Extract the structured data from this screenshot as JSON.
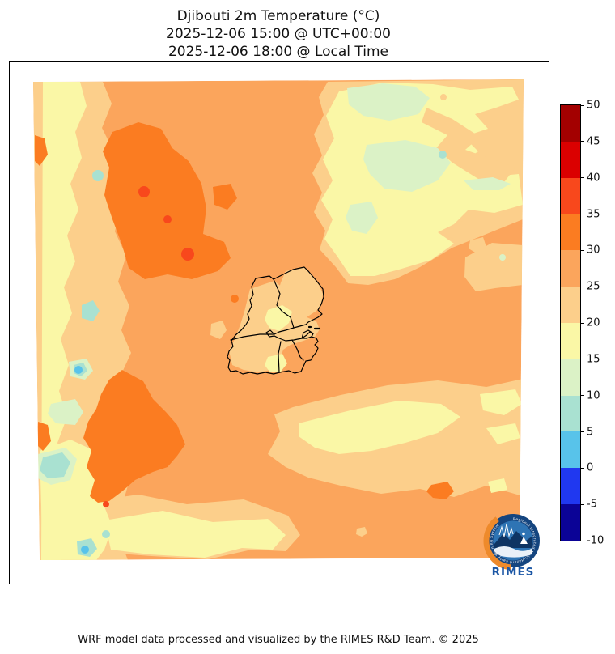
{
  "title": {
    "line1": "Djibouti 2m Temperature (°C)",
    "line2": "2025-12-06 15:00 @ UTC+00:00",
    "line3": "2025-12-06 18:00 @ Local Time"
  },
  "footer": {
    "credit": "WRF model data processed and visualized by the RIMES R&D Team. © 2025"
  },
  "logo": {
    "text": "RIMES",
    "ring_text": "Regional Integrated Multi-Hazard Early Warning System"
  },
  "chart_data": {
    "type": "heatmap",
    "title": "Djibouti 2m Temperature (°C)",
    "variable": "2m Temperature",
    "units": "°C",
    "valid_time_utc": "2025-12-06 15:00 @ UTC+00:00",
    "valid_time_local": "2025-12-06 18:00 @ Local Time",
    "colorbar": {
      "orientation": "vertical",
      "tick_labels_top_to_bottom": [
        "50",
        "45",
        "40",
        "35",
        "30",
        "25",
        "20",
        "15",
        "10",
        "5",
        "0",
        "-5",
        "-10"
      ],
      "levels_low_to_high": [
        -10,
        -5,
        0,
        5,
        10,
        15,
        20,
        25,
        30,
        35,
        40,
        45,
        50
      ],
      "colors_low_to_high": [
        "#0B0396",
        "#2038F0",
        "#58C3EA",
        "#A9E1D1",
        "#DBF2C6",
        "#FAF7A6",
        "#FCCF8B",
        "#FBA55C",
        "#FB7C21",
        "#F8481C",
        "#DB0000",
        "#A30000"
      ]
    },
    "palette": {
      "t35_40": "#F8481C",
      "t30_35": "#FB7C21",
      "t25_30": "#FBA55C",
      "t20_25": "#FCCF8B",
      "t15_20": "#FAF7A6",
      "t10_15": "#DBF2C6",
      "t5_10": "#A9E1D1",
      "t0_5": "#58C3EA"
    },
    "field_summary": {
      "dominant_band_c": "25-30",
      "warm_patches_c": "30-40 in two interior lowland blobs (north-center and south-center-west)",
      "cool_patches_c": "0-15 along the western escarpment band and the north-eastern highlands",
      "overlay": "Djibouti national and regional administrative boundaries (black outline)"
    }
  }
}
